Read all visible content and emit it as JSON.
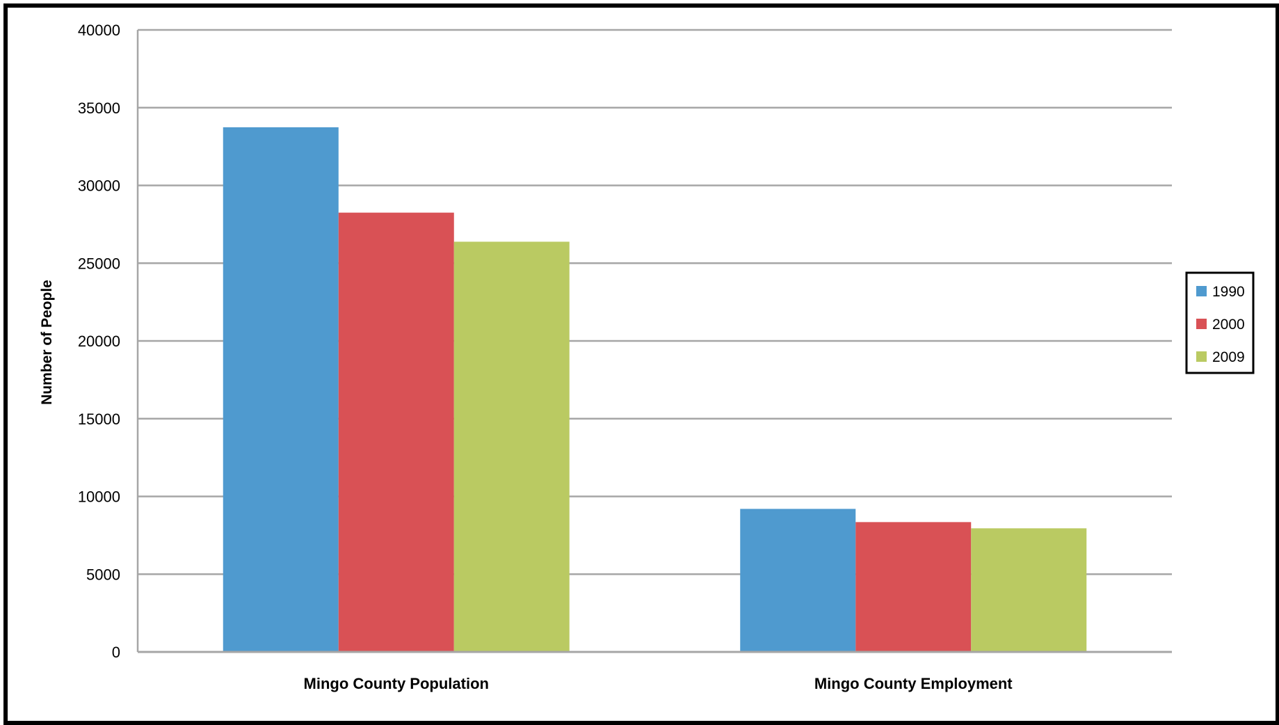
{
  "chart_data": {
    "type": "bar",
    "categories": [
      "Mingo County Population",
      "Mingo County Employment"
    ],
    "series": [
      {
        "name": "1990",
        "values": [
          33740,
          9200
        ],
        "color": "#4F9ACF"
      },
      {
        "name": "2000",
        "values": [
          28250,
          8350
        ],
        "color": "#D95155"
      },
      {
        "name": "2009",
        "values": [
          26380,
          7950
        ],
        "color": "#BACA62"
      }
    ],
    "title": "",
    "xlabel": "",
    "ylabel": "Number of People",
    "ylim": [
      0,
      40000
    ],
    "yticks": [
      "0",
      "5000",
      "10000",
      "15000",
      "20000",
      "25000",
      "30000",
      "35000",
      "40000"
    ],
    "grid": true,
    "legend_position": "right",
    "gridline_color": "#A6A6A6"
  }
}
